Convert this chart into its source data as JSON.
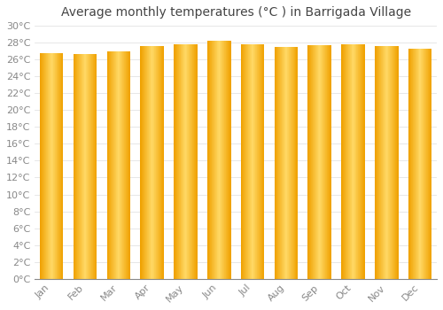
{
  "title": "Average monthly temperatures (°C ) in Barrigada Village",
  "months": [
    "Jan",
    "Feb",
    "Mar",
    "Apr",
    "May",
    "Jun",
    "Jul",
    "Aug",
    "Sep",
    "Oct",
    "Nov",
    "Dec"
  ],
  "values": [
    26.7,
    26.6,
    27.0,
    27.6,
    27.8,
    28.2,
    27.8,
    27.5,
    27.7,
    27.8,
    27.6,
    27.3
  ],
  "ylim": [
    0,
    30
  ],
  "ytick_step": 2,
  "bar_color_center": "#FFD966",
  "bar_color_edge": "#F0A000",
  "background_color": "#FFFFFF",
  "grid_color": "#DDDDDD",
  "title_fontsize": 10,
  "tick_fontsize": 8,
  "tick_label_color": "#888888",
  "bar_width": 0.7
}
